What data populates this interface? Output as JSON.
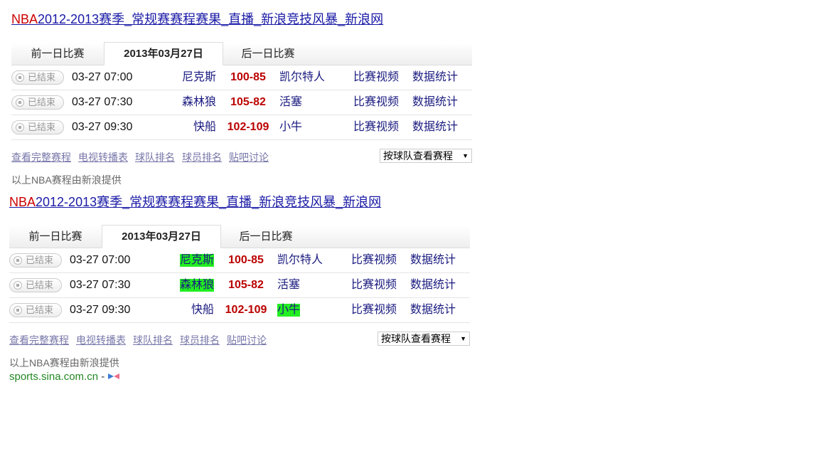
{
  "blocks": [
    {
      "title_nba": "NBA",
      "title_rest": "2012-2013赛季_常规赛赛程赛果_直播_新浪竞技风暴_新浪网",
      "tabs": [
        "前一日比赛",
        "2013年03月27日",
        "后一日比赛"
      ],
      "games": [
        {
          "status": "已结束",
          "time": "03-27 07:00",
          "home": "尼克斯",
          "score": "100-85",
          "away": "凯尔特人",
          "video": "比赛视频",
          "stats": "数据统计",
          "hl_home": false,
          "hl_away": false
        },
        {
          "status": "已结束",
          "time": "03-27 07:30",
          "home": "森林狼",
          "score": "105-82",
          "away": "活塞",
          "video": "比赛视频",
          "stats": "数据统计",
          "hl_home": false,
          "hl_away": false
        },
        {
          "status": "已结束",
          "time": "03-27 09:30",
          "home": "快船",
          "score": "102-109",
          "away": "小牛",
          "video": "比赛视频",
          "stats": "数据统计",
          "hl_home": false,
          "hl_away": false
        }
      ],
      "links": [
        "查看完整赛程",
        "电视转播表",
        "球队排名",
        "球员排名",
        "贴吧讨论"
      ],
      "select": "按球队查看赛程",
      "credit": "以上NBA赛程由新浪提供"
    },
    {
      "title_nba": "NBA",
      "title_rest": "2012-2013赛季_常规赛赛程赛果_直播_新浪竞技风暴_新浪网",
      "tabs": [
        "前一日比赛",
        "2013年03月27日",
        "后一日比赛"
      ],
      "games": [
        {
          "status": "已结束",
          "time": "03-27 07:00",
          "home": "尼克斯",
          "score": "100-85",
          "away": "凯尔特人",
          "video": "比赛视频",
          "stats": "数据统计",
          "hl_home": true,
          "hl_away": false
        },
        {
          "status": "已结束",
          "time": "03-27 07:30",
          "home": "森林狼",
          "score": "105-82",
          "away": "活塞",
          "video": "比赛视频",
          "stats": "数据统计",
          "hl_home": true,
          "hl_away": false
        },
        {
          "status": "已结束",
          "time": "03-27 09:30",
          "home": "快船",
          "score": "102-109",
          "away": "小牛",
          "video": "比赛视频",
          "stats": "数据统计",
          "hl_home": false,
          "hl_away": true
        }
      ],
      "links": [
        "查看完整赛程",
        "电视转播表",
        "球队排名",
        "球员排名",
        "贴吧讨论"
      ],
      "select": "按球队查看赛程",
      "credit": "以上NBA赛程由新浪提供"
    }
  ],
  "highlight_color": "#22ee22",
  "footer": {
    "site": "sports.sina.com.cn",
    "dash": "-",
    "icon": "sina-logo-icon"
  }
}
